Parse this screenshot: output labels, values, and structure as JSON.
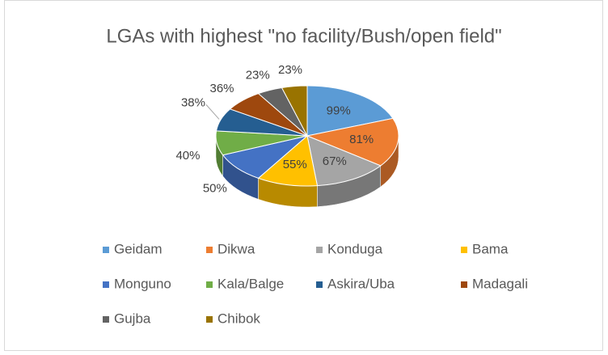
{
  "chart_data": {
    "type": "pie",
    "title": "LGAs with highest \"no facility/Bush/open field\"",
    "categories": [
      "Geidam",
      "Dikwa",
      "Konduga",
      "Bama",
      "Monguno",
      "Kala/Balge",
      "Askira/Uba",
      "Madagali",
      "Gujba",
      "Chibok"
    ],
    "values": [
      99,
      81,
      67,
      55,
      50,
      40,
      38,
      36,
      23,
      23
    ],
    "value_labels": [
      "99%",
      "81%",
      "67%",
      "55%",
      "50%",
      "40%",
      "38%",
      "36%",
      "23%",
      "23%"
    ],
    "colors": [
      "#5b9bd5",
      "#ed7d31",
      "#a5a5a5",
      "#ffc000",
      "#4472c4",
      "#70ad47",
      "#255e91",
      "#9e480e",
      "#636363",
      "#997300"
    ],
    "legend": "bottom"
  }
}
